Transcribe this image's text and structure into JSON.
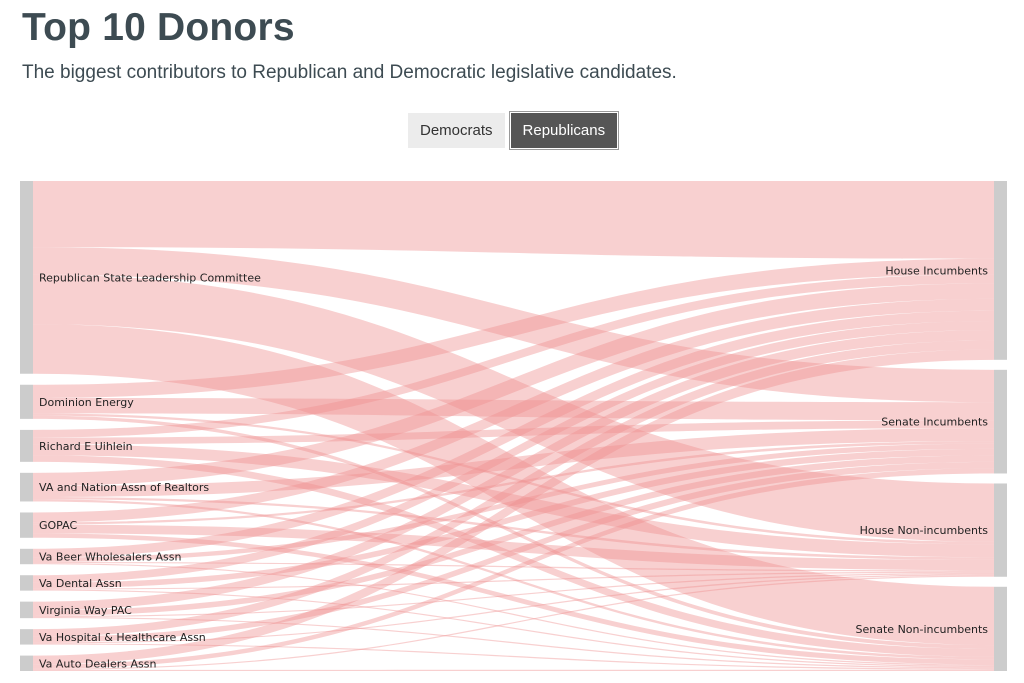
{
  "header": {
    "title": "Top 10 Donors",
    "subtitle": "The biggest contributors to Republican and Democratic legislative candidates."
  },
  "toggle": {
    "democrats_label": "Democrats",
    "republicans_label": "Republicans",
    "selected": "Republicans"
  },
  "colors": {
    "link": "#ef8f8f",
    "node": "#cccccc",
    "active_button": "#555555",
    "inactive_button": "#ececec",
    "title_text": "#3d4b52"
  },
  "chart_data": {
    "type": "sankey",
    "sources": [
      "Republican State Leadership Committee",
      "Dominion Energy",
      "Richard E Uihlein",
      "VA and Nation Assn of Realtors",
      "GOPAC",
      "Va Beer Wholesalers Assn",
      "Va Dental Assn",
      "Virginia Way PAC",
      "Va Hospital & Healthcare Assn",
      "Va Auto Dealers Assn"
    ],
    "targets": [
      "House Incumbents",
      "Senate Incumbents",
      "House Non-incumbents",
      "Senate Non-incumbents"
    ],
    "links": [
      {
        "source": 0,
        "target": 0,
        "value": 60
      },
      {
        "source": 0,
        "target": 1,
        "value": 25
      },
      {
        "source": 0,
        "target": 2,
        "value": 45
      },
      {
        "source": 0,
        "target": 3,
        "value": 45
      },
      {
        "source": 1,
        "target": 0,
        "value": 12
      },
      {
        "source": 1,
        "target": 1,
        "value": 14
      },
      {
        "source": 1,
        "target": 2,
        "value": 2
      },
      {
        "source": 1,
        "target": 3,
        "value": 3
      },
      {
        "source": 2,
        "target": 0,
        "value": 7
      },
      {
        "source": 2,
        "target": 1,
        "value": 6
      },
      {
        "source": 2,
        "target": 2,
        "value": 10
      },
      {
        "source": 2,
        "target": 3,
        "value": 6
      },
      {
        "source": 3,
        "target": 0,
        "value": 12
      },
      {
        "source": 3,
        "target": 1,
        "value": 10
      },
      {
        "source": 3,
        "target": 2,
        "value": 2
      },
      {
        "source": 3,
        "target": 3,
        "value": 2
      },
      {
        "source": 4,
        "target": 0,
        "value": 9
      },
      {
        "source": 4,
        "target": 1,
        "value": 2
      },
      {
        "source": 4,
        "target": 2,
        "value": 8
      },
      {
        "source": 4,
        "target": 3,
        "value": 4
      },
      {
        "source": 5,
        "target": 0,
        "value": 8
      },
      {
        "source": 5,
        "target": 1,
        "value": 4
      },
      {
        "source": 5,
        "target": 2,
        "value": 1
      },
      {
        "source": 5,
        "target": 3,
        "value": 1
      },
      {
        "source": 6,
        "target": 0,
        "value": 7
      },
      {
        "source": 6,
        "target": 1,
        "value": 5
      },
      {
        "source": 6,
        "target": 2,
        "value": 1
      },
      {
        "source": 6,
        "target": 3,
        "value": 1
      },
      {
        "source": 7,
        "target": 0,
        "value": 8
      },
      {
        "source": 7,
        "target": 1,
        "value": 5
      },
      {
        "source": 7,
        "target": 2,
        "value": 1
      },
      {
        "source": 7,
        "target": 3,
        "value": 1
      },
      {
        "source": 8,
        "target": 0,
        "value": 7
      },
      {
        "source": 8,
        "target": 1,
        "value": 5
      },
      {
        "source": 8,
        "target": 2,
        "value": 1
      },
      {
        "source": 8,
        "target": 3,
        "value": 1
      },
      {
        "source": 9,
        "target": 0,
        "value": 8
      },
      {
        "source": 9,
        "target": 1,
        "value": 4
      },
      {
        "source": 9,
        "target": 2,
        "value": 1
      },
      {
        "source": 9,
        "target": 3,
        "value": 1
      }
    ]
  }
}
